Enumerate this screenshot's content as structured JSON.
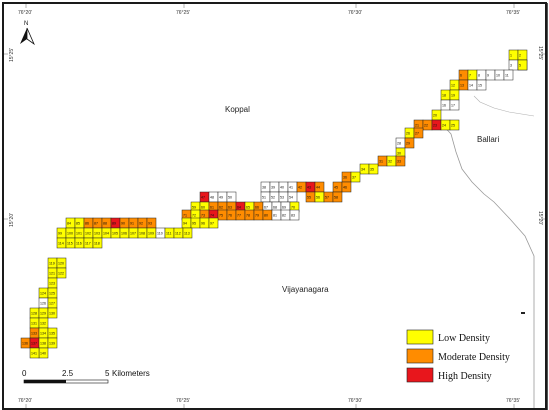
{
  "colors": {
    "low": "#ffff00",
    "moderate": "#ff8c00",
    "high": "#e8161c",
    "none": "#ffffff"
  },
  "north_arrow_label": "N",
  "coord_ticks": {
    "top": [
      "76°20'",
      "76°25'",
      "76°30'",
      "76°35'"
    ],
    "bottom": [
      "76°20'",
      "76°25'",
      "76°30'",
      "76°35'"
    ],
    "left": [
      "15°25'",
      "15°20'"
    ],
    "right": [
      "15°25'",
      "15°20'"
    ]
  },
  "place_labels": [
    "Koppal",
    "Ballari",
    "Vijayanagara"
  ],
  "legend": [
    {
      "label": "Low Density",
      "color_key": "low"
    },
    {
      "label": "Moderate Density",
      "color_key": "moderate"
    },
    {
      "label": "High Density",
      "color_key": "high"
    }
  ],
  "scale_bar": {
    "labels": [
      "0",
      "2.5",
      "5"
    ],
    "unit": "Kilometers"
  },
  "grid_cells": [
    {
      "n": "1",
      "d": "low"
    },
    {
      "n": "2",
      "d": "low"
    },
    {
      "n": "3",
      "d": "none"
    },
    {
      "n": "4",
      "d": "low"
    },
    {
      "n": "5",
      "d": "low"
    },
    {
      "n": "6",
      "d": "moderate"
    },
    {
      "n": "7",
      "d": "low"
    },
    {
      "n": "8",
      "d": "none"
    },
    {
      "n": "9",
      "d": "none"
    },
    {
      "n": "10",
      "d": "none"
    },
    {
      "n": "11",
      "d": "none"
    },
    {
      "n": "12",
      "d": "low"
    },
    {
      "n": "13",
      "d": "moderate"
    },
    {
      "n": "14",
      "d": "none"
    },
    {
      "n": "15",
      "d": "none"
    },
    {
      "n": "18",
      "d": "low"
    },
    {
      "n": "19",
      "d": "low"
    },
    {
      "n": "16",
      "d": "none"
    },
    {
      "n": "17",
      "d": "none"
    },
    {
      "n": "20",
      "d": "low"
    },
    {
      "n": "21",
      "d": "moderate"
    },
    {
      "n": "22",
      "d": "moderate"
    },
    {
      "n": "23",
      "d": "high"
    },
    {
      "n": "24",
      "d": "low"
    },
    {
      "n": "25",
      "d": "low"
    },
    {
      "n": "26",
      "d": "low"
    },
    {
      "n": "27",
      "d": "moderate"
    },
    {
      "n": "28",
      "d": "none"
    },
    {
      "n": "29",
      "d": "moderate"
    },
    {
      "n": "30",
      "d": "low"
    },
    {
      "n": "31",
      "d": "moderate"
    },
    {
      "n": "32",
      "d": "low"
    },
    {
      "n": "33",
      "d": "moderate"
    },
    {
      "n": "34",
      "d": "low"
    },
    {
      "n": "35",
      "d": "low"
    },
    {
      "n": "36",
      "d": "moderate"
    },
    {
      "n": "37",
      "d": "low"
    },
    {
      "n": "38",
      "d": "none"
    },
    {
      "n": "39",
      "d": "none"
    },
    {
      "n": "40",
      "d": "none"
    },
    {
      "n": "41",
      "d": "none"
    },
    {
      "n": "42",
      "d": "moderate"
    },
    {
      "n": "43",
      "d": "high"
    },
    {
      "n": "44",
      "d": "moderate"
    },
    {
      "n": "45",
      "d": "moderate"
    },
    {
      "n": "46",
      "d": "moderate"
    },
    {
      "n": "47",
      "d": "high"
    },
    {
      "n": "48",
      "d": "none"
    },
    {
      "n": "49",
      "d": "none"
    },
    {
      "n": "50",
      "d": "none"
    },
    {
      "n": "51",
      "d": "none"
    },
    {
      "n": "52",
      "d": "none"
    },
    {
      "n": "53",
      "d": "none"
    },
    {
      "n": "54",
      "d": "none"
    },
    {
      "n": "55",
      "d": "moderate"
    },
    {
      "n": "56",
      "d": "low"
    },
    {
      "n": "57",
      "d": "moderate"
    },
    {
      "n": "58",
      "d": "moderate"
    },
    {
      "n": "59",
      "d": "low"
    },
    {
      "n": "60",
      "d": "low"
    },
    {
      "n": "61",
      "d": "moderate"
    },
    {
      "n": "62",
      "d": "moderate"
    },
    {
      "n": "63",
      "d": "moderate"
    },
    {
      "n": "64",
      "d": "high"
    },
    {
      "n": "65",
      "d": "low"
    },
    {
      "n": "66",
      "d": "moderate"
    },
    {
      "n": "67",
      "d": "none"
    },
    {
      "n": "68",
      "d": "none"
    },
    {
      "n": "69",
      "d": "none"
    },
    {
      "n": "70",
      "d": "low"
    },
    {
      "n": "71",
      "d": "moderate"
    },
    {
      "n": "72",
      "d": "low"
    },
    {
      "n": "73",
      "d": "moderate"
    },
    {
      "n": "74",
      "d": "high"
    },
    {
      "n": "75",
      "d": "moderate"
    },
    {
      "n": "76",
      "d": "moderate"
    },
    {
      "n": "77",
      "d": "moderate"
    },
    {
      "n": "78",
      "d": "moderate"
    },
    {
      "n": "79",
      "d": "moderate"
    },
    {
      "n": "80",
      "d": "moderate"
    },
    {
      "n": "81",
      "d": "none"
    },
    {
      "n": "82",
      "d": "none"
    },
    {
      "n": "83",
      "d": "none"
    },
    {
      "n": "84",
      "d": "low"
    },
    {
      "n": "85",
      "d": "low"
    },
    {
      "n": "86",
      "d": "moderate"
    },
    {
      "n": "87",
      "d": "moderate"
    },
    {
      "n": "88",
      "d": "moderate"
    },
    {
      "n": "89",
      "d": "high"
    },
    {
      "n": "90",
      "d": "moderate"
    },
    {
      "n": "91",
      "d": "moderate"
    },
    {
      "n": "92",
      "d": "moderate"
    },
    {
      "n": "93",
      "d": "moderate"
    },
    {
      "n": "94",
      "d": "low"
    },
    {
      "n": "95",
      "d": "low"
    },
    {
      "n": "96",
      "d": "low"
    },
    {
      "n": "97",
      "d": "low"
    },
    {
      "n": "99",
      "d": "low"
    },
    {
      "n": "100",
      "d": "low"
    },
    {
      "n": "101",
      "d": "low"
    },
    {
      "n": "102",
      "d": "low"
    },
    {
      "n": "103",
      "d": "low"
    },
    {
      "n": "104",
      "d": "low"
    },
    {
      "n": "105",
      "d": "low"
    },
    {
      "n": "106",
      "d": "low"
    },
    {
      "n": "107",
      "d": "low"
    },
    {
      "n": "108",
      "d": "low"
    },
    {
      "n": "109",
      "d": "low"
    },
    {
      "n": "110",
      "d": "none"
    },
    {
      "n": "111",
      "d": "low"
    },
    {
      "n": "112",
      "d": "low"
    },
    {
      "n": "113",
      "d": "low"
    },
    {
      "n": "114",
      "d": "low"
    },
    {
      "n": "115",
      "d": "low"
    },
    {
      "n": "116",
      "d": "low"
    },
    {
      "n": "117",
      "d": "low"
    },
    {
      "n": "118",
      "d": "low"
    },
    {
      "n": "119",
      "d": "low"
    },
    {
      "n": "120",
      "d": "low"
    },
    {
      "n": "121",
      "d": "low"
    },
    {
      "n": "122",
      "d": "low"
    },
    {
      "n": "123",
      "d": "low"
    },
    {
      "n": "124",
      "d": "low"
    },
    {
      "n": "125",
      "d": "low"
    },
    {
      "n": "126",
      "d": "none"
    },
    {
      "n": "127",
      "d": "low"
    },
    {
      "n": "128",
      "d": "low"
    },
    {
      "n": "129",
      "d": "low"
    },
    {
      "n": "130",
      "d": "low"
    },
    {
      "n": "131",
      "d": "low"
    },
    {
      "n": "132",
      "d": "low"
    },
    {
      "n": "133",
      "d": "moderate"
    },
    {
      "n": "134",
      "d": "low"
    },
    {
      "n": "135",
      "d": "low"
    },
    {
      "n": "136",
      "d": "moderate"
    },
    {
      "n": "137",
      "d": "high"
    },
    {
      "n": "138",
      "d": "low"
    },
    {
      "n": "139",
      "d": "low"
    },
    {
      "n": "140",
      "d": "low"
    },
    {
      "n": "141",
      "d": "low"
    }
  ]
}
